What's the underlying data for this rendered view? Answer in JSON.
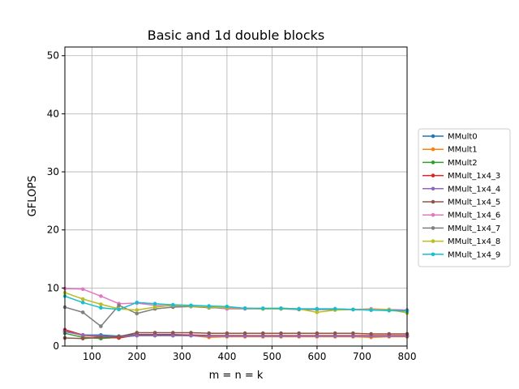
{
  "chart_data": {
    "type": "line",
    "title": "Basic and 1d double blocks",
    "xlabel": "m = n = k",
    "ylabel": "GFLOPS",
    "xlim": [
      40,
      800
    ],
    "ylim": [
      0,
      51.5
    ],
    "xticks": [
      100,
      200,
      300,
      400,
      500,
      600,
      700,
      800
    ],
    "yticks": [
      0,
      10,
      20,
      30,
      40,
      50
    ],
    "grid": true,
    "legend": "center-right, outside plot",
    "x": [
      40,
      80,
      120,
      160,
      200,
      240,
      280,
      320,
      360,
      400,
      440,
      480,
      520,
      560,
      600,
      640,
      680,
      720,
      760,
      800
    ],
    "series": [
      {
        "name": "MMult0",
        "color": "#1f77b4",
        "values": [
          2.5,
          1.9,
          1.9,
          1.7,
          2.0,
          2.0,
          2.0,
          1.9,
          1.8,
          1.8,
          1.8,
          1.7,
          1.7,
          1.7,
          1.7,
          1.7,
          1.7,
          1.7,
          1.7,
          1.7
        ]
      },
      {
        "name": "MMult1",
        "color": "#ff7f0e",
        "values": [
          2.6,
          1.8,
          1.6,
          1.4,
          1.9,
          1.9,
          1.8,
          1.8,
          1.5,
          1.6,
          1.6,
          1.6,
          1.6,
          1.6,
          1.6,
          1.6,
          1.6,
          1.5,
          1.6,
          1.6
        ]
      },
      {
        "name": "MMult2",
        "color": "#2ca02c",
        "values": [
          2.2,
          1.5,
          1.3,
          1.5,
          1.8,
          1.8,
          1.8,
          1.8,
          1.7,
          1.7,
          1.7,
          1.7,
          1.7,
          1.7,
          1.7,
          1.7,
          1.7,
          1.7,
          1.7,
          1.7
        ]
      },
      {
        "name": "MMult_1x4_3",
        "color": "#d62728",
        "values": [
          2.8,
          1.9,
          1.6,
          1.4,
          1.9,
          1.9,
          1.9,
          1.9,
          1.8,
          1.8,
          1.8,
          1.8,
          1.8,
          1.8,
          1.8,
          1.8,
          1.8,
          1.8,
          1.8,
          1.8
        ]
      },
      {
        "name": "MMult_1x4_4",
        "color": "#9467bd",
        "values": [
          2.5,
          1.9,
          1.7,
          1.6,
          1.8,
          1.8,
          1.8,
          1.8,
          1.7,
          1.7,
          1.7,
          1.7,
          1.7,
          1.7,
          1.7,
          1.7,
          1.7,
          1.7,
          1.7,
          1.7
        ]
      },
      {
        "name": "MMult_1x4_5",
        "color": "#8c564b",
        "values": [
          1.4,
          1.3,
          1.5,
          1.6,
          2.3,
          2.3,
          2.3,
          2.3,
          2.2,
          2.2,
          2.2,
          2.2,
          2.2,
          2.2,
          2.2,
          2.2,
          2.2,
          2.1,
          2.1,
          2.1
        ]
      },
      {
        "name": "MMult_1x4_6",
        "color": "#e377c2",
        "values": [
          9.9,
          9.8,
          8.6,
          7.3,
          7.4,
          7.0,
          6.9,
          6.9,
          6.7,
          6.4,
          6.4,
          6.4,
          6.5,
          6.4,
          6.4,
          6.4,
          6.3,
          6.4,
          6.3,
          6.2
        ]
      },
      {
        "name": "MMult_1x4_7",
        "color": "#7f7f7f",
        "values": [
          6.7,
          5.8,
          3.4,
          7.0,
          5.6,
          6.4,
          6.7,
          6.8,
          6.6,
          6.6,
          6.5,
          6.4,
          6.4,
          6.3,
          6.3,
          6.3,
          6.3,
          6.2,
          6.2,
          6.1
        ]
      },
      {
        "name": "MMult_1x4_8",
        "color": "#bcbd22",
        "values": [
          9.2,
          8.1,
          7.2,
          6.4,
          6.2,
          6.7,
          7.0,
          6.9,
          6.7,
          6.6,
          6.5,
          6.4,
          6.4,
          6.4,
          5.8,
          6.2,
          6.3,
          6.3,
          6.3,
          5.7
        ]
      },
      {
        "name": "MMult_1x4_9",
        "color": "#17becf",
        "values": [
          8.6,
          7.5,
          6.6,
          6.3,
          7.5,
          7.3,
          7.1,
          7.0,
          6.9,
          6.8,
          6.5,
          6.5,
          6.5,
          6.4,
          6.4,
          6.4,
          6.3,
          6.2,
          6.1,
          6.0
        ]
      }
    ]
  }
}
